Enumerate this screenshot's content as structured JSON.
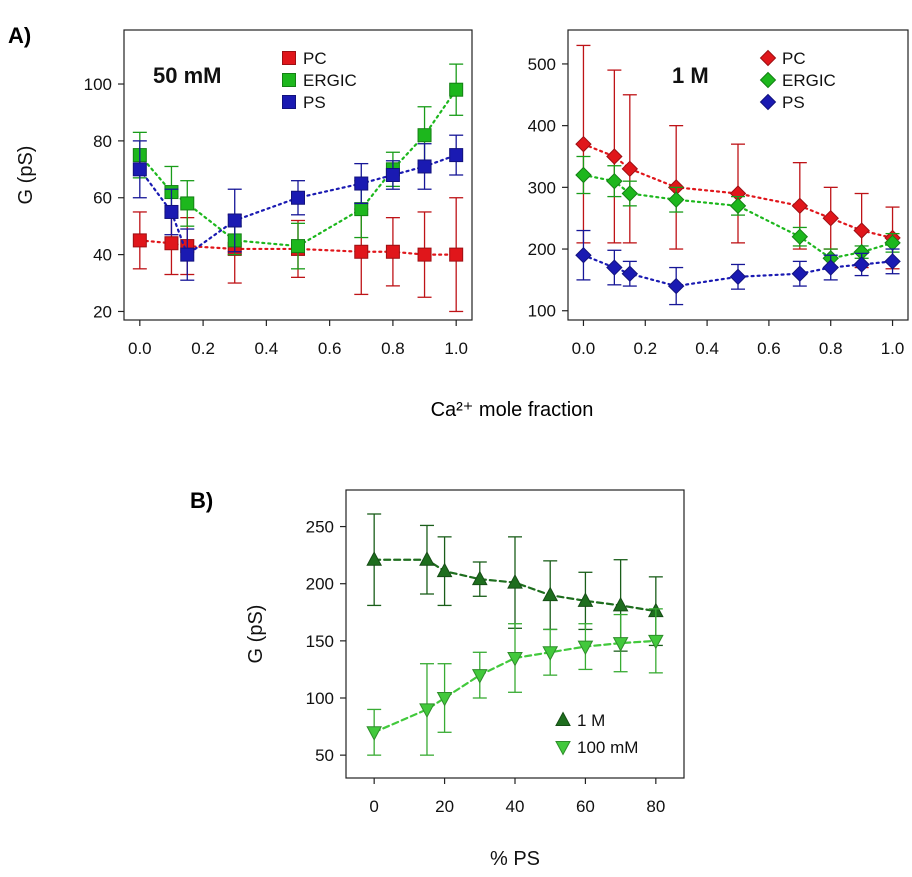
{
  "figure": {
    "panel_a_label": "A)",
    "panel_b_label": "B)",
    "shared_xlabel": "Ca²⁺ mole fraction"
  },
  "chart_data": [
    {
      "type": "scatter",
      "panel": "A-left",
      "annotation": "50 mM",
      "ylabel": "G (pS)",
      "xlabel": "",
      "xlim": [
        -0.05,
        1.05
      ],
      "ylim": [
        17,
        119
      ],
      "xticks": [
        "0.0",
        "0.2",
        "0.4",
        "0.6",
        "0.8",
        "1.0"
      ],
      "yticks": [
        "20",
        "40",
        "60",
        "80",
        "100"
      ],
      "legend_position": "top-right",
      "marker": "square",
      "series": [
        {
          "name": "PC",
          "color": "#e0161b",
          "x": [
            0.0,
            0.1,
            0.15,
            0.3,
            0.5,
            0.7,
            0.8,
            0.9,
            1.0
          ],
          "y": [
            45,
            44,
            43,
            42,
            42,
            41,
            41,
            40,
            40
          ],
          "err": [
            10,
            11,
            10,
            12,
            10,
            15,
            12,
            15,
            20
          ]
        },
        {
          "name": "ERGIC",
          "color": "#1db71d",
          "x": [
            0.0,
            0.1,
            0.15,
            0.3,
            0.5,
            0.7,
            0.8,
            0.9,
            1.0
          ],
          "y": [
            75,
            62,
            58,
            45,
            43,
            56,
            70,
            82,
            98
          ],
          "err": [
            8,
            9,
            8,
            5,
            8,
            10,
            6,
            10,
            9
          ]
        },
        {
          "name": "PS",
          "color": "#1a1ab2",
          "x": [
            0.0,
            0.1,
            0.15,
            0.3,
            0.5,
            0.7,
            0.8,
            0.9,
            1.0
          ],
          "y": [
            70,
            55,
            40,
            52,
            60,
            65,
            68,
            71,
            75
          ],
          "err": [
            10,
            8,
            9,
            11,
            6,
            7,
            5,
            8,
            7
          ]
        }
      ]
    },
    {
      "type": "scatter",
      "panel": "A-right",
      "annotation": "1 M",
      "ylabel": "",
      "xlabel": "",
      "xlim": [
        -0.05,
        1.05
      ],
      "ylim": [
        85,
        555
      ],
      "xticks": [
        "0.0",
        "0.2",
        "0.4",
        "0.6",
        "0.8",
        "1.0"
      ],
      "yticks": [
        "100",
        "200",
        "300",
        "400",
        "500"
      ],
      "legend_position": "top-right",
      "marker": "diamond",
      "series": [
        {
          "name": "PC",
          "color": "#e0161b",
          "x": [
            0.0,
            0.1,
            0.15,
            0.3,
            0.5,
            0.7,
            0.8,
            0.9,
            1.0
          ],
          "y": [
            370,
            350,
            330,
            300,
            290,
            270,
            250,
            230,
            218
          ],
          "err": [
            160,
            140,
            120,
            100,
            80,
            70,
            50,
            60,
            50
          ]
        },
        {
          "name": "ERGIC",
          "color": "#1db71d",
          "x": [
            0.0,
            0.1,
            0.15,
            0.3,
            0.5,
            0.7,
            0.8,
            0.9,
            1.0
          ],
          "y": [
            320,
            310,
            290,
            280,
            270,
            220,
            185,
            195,
            210
          ],
          "err": [
            30,
            25,
            20,
            20,
            15,
            15,
            15,
            10,
            15
          ]
        },
        {
          "name": "PS",
          "color": "#1a1ab2",
          "x": [
            0.0,
            0.1,
            0.15,
            0.3,
            0.5,
            0.7,
            0.8,
            0.9,
            1.0
          ],
          "y": [
            190,
            170,
            160,
            140,
            155,
            160,
            170,
            175,
            180
          ],
          "err": [
            40,
            28,
            20,
            30,
            20,
            20,
            20,
            18,
            20
          ]
        }
      ]
    },
    {
      "type": "scatter",
      "panel": "B",
      "annotation": "",
      "ylabel": "G (pS)",
      "xlabel": "% PS",
      "xlim": [
        -8,
        88
      ],
      "ylim": [
        30,
        282
      ],
      "xticks": [
        "0",
        "20",
        "40",
        "60",
        "80"
      ],
      "yticks": [
        "50",
        "100",
        "150",
        "200",
        "250"
      ],
      "legend_position": "bottom-right",
      "series": [
        {
          "name": "1 M",
          "color": "#1e6e1e",
          "marker": "triangle-up",
          "x": [
            0,
            15,
            20,
            30,
            40,
            50,
            60,
            70,
            80
          ],
          "y": [
            221,
            221,
            211,
            204,
            201,
            190,
            185,
            181,
            176
          ],
          "err": [
            40,
            30,
            30,
            15,
            40,
            30,
            25,
            40,
            30
          ]
        },
        {
          "name": "100 mM",
          "color": "#42c93c",
          "marker": "triangle-down",
          "x": [
            0,
            15,
            20,
            30,
            40,
            50,
            60,
            70,
            80
          ],
          "y": [
            70,
            90,
            100,
            120,
            135,
            140,
            145,
            148,
            150
          ],
          "err": [
            20,
            40,
            30,
            20,
            30,
            20,
            20,
            25,
            28
          ]
        }
      ]
    }
  ]
}
